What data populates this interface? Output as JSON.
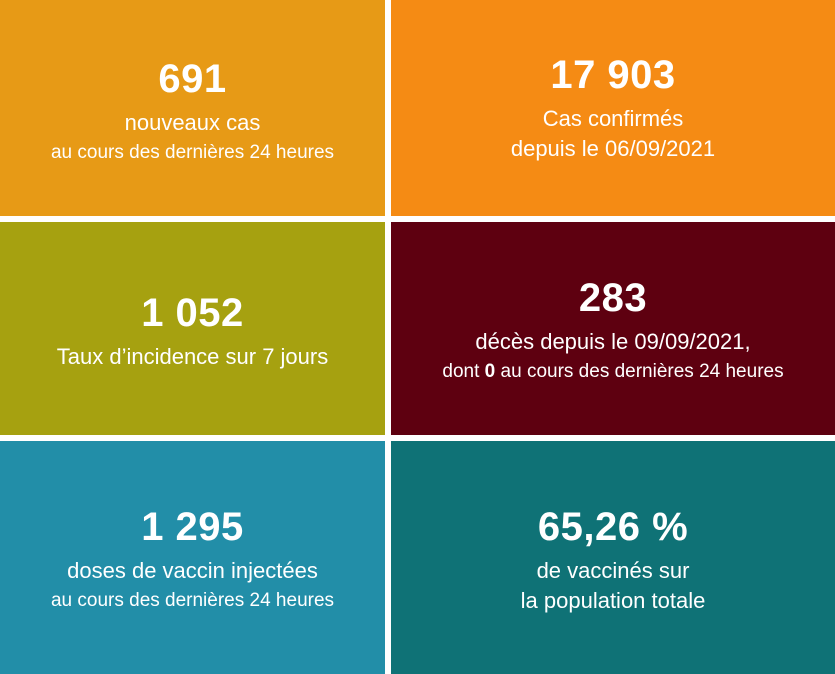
{
  "tiles": {
    "new_cases": {
      "color": "#e79a16",
      "value": "691",
      "line1": "nouveaux cas",
      "line2": "au cours des dernières 24 heures"
    },
    "confirmed": {
      "color": "#f58b14",
      "value": "17 903",
      "line1": "Cas confirmés",
      "line2": "depuis le 06/09/2021"
    },
    "incidence": {
      "color": "#a6a110",
      "value": "1 052",
      "line1": "Taux d’incidence sur 7 jours"
    },
    "deaths": {
      "color": "#5e0010",
      "value": "283",
      "line1": "décès depuis le 09/09/2021,",
      "line2_prefix": "dont ",
      "line2_bold": "0",
      "line2_suffix": " au cours des dernières 24 heures"
    },
    "doses": {
      "color": "#228ea8",
      "value": "1 295",
      "line1": "doses de vaccin injectées",
      "line2": "au cours des dernières 24 heures"
    },
    "vaccinated": {
      "color": "#0f7276",
      "value": "65,26 %",
      "line1": "de vaccinés sur",
      "line2": "la population totale"
    }
  }
}
